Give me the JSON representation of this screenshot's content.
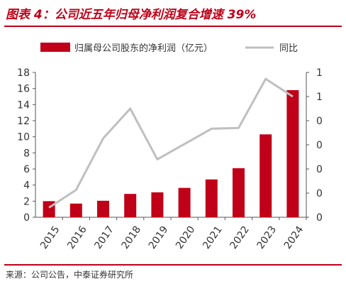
{
  "header": {
    "title": "图表 4：公司近五年归母净利润复合增速 39%"
  },
  "footer": {
    "source": "来源：公司公告，中泰证券研究所"
  },
  "chart_data": {
    "type": "bar",
    "categories": [
      "2015",
      "2016",
      "2017",
      "2018",
      "2019",
      "2020",
      "2021",
      "2022",
      "2023",
      "2024"
    ],
    "series": [
      {
        "name": "归属母公司股东的净利润（亿元）",
        "type": "bar",
        "axis": "left",
        "color": "#c00018",
        "values": [
          2.0,
          1.7,
          2.05,
          2.9,
          3.1,
          3.65,
          4.7,
          6.1,
          10.3,
          15.8
        ]
      },
      {
        "name": "同比",
        "type": "line",
        "axis": "right",
        "color": "#bfbfbf",
        "values": [
          0.12,
          0.34,
          0.98,
          1.35,
          0.72,
          0.91,
          1.1,
          1.11,
          1.72,
          1.5
        ]
      }
    ],
    "left_axis": {
      "ylim": [
        0,
        18
      ],
      "ticks": [
        "0",
        "2",
        "4",
        "6",
        "8",
        "10",
        "12",
        "14",
        "16",
        "18"
      ]
    },
    "right_axis": {
      "ylim": [
        0,
        1.8
      ],
      "ticks": [
        "0",
        "0",
        "0",
        "0",
        "0",
        "1",
        "1"
      ]
    },
    "legend_position": "top"
  }
}
